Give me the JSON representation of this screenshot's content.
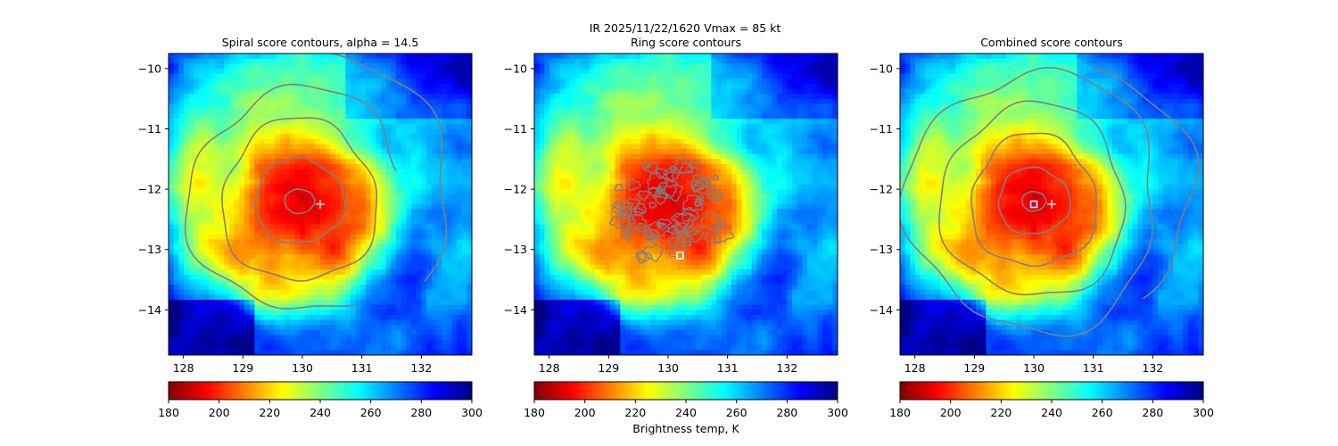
{
  "suptitle": "IR  2025/11/22/1620    Vmax = 85 kt",
  "colorbar": {
    "label": "Brightness temp, K",
    "ticks": [
      180,
      200,
      220,
      240,
      260,
      280,
      300
    ],
    "range": [
      180,
      300
    ],
    "colormap": "jet_r"
  },
  "chart_data": [
    {
      "type": "heatmap",
      "title": "Spiral score contours, alpha = 14.5",
      "xlim": [
        127.75,
        132.85
      ],
      "ylim": [
        -14.75,
        -9.75
      ],
      "xticks": [
        128,
        129,
        130,
        131,
        132
      ],
      "yticks": [
        -10,
        -11,
        -12,
        -13,
        -14
      ],
      "contour_color": "#808080",
      "center_marker": {
        "x": 130.3,
        "y": -12.25,
        "symbol": "+"
      },
      "eye_marker": null
    },
    {
      "type": "heatmap",
      "title": "Ring score contours",
      "xlim": [
        127.75,
        132.85
      ],
      "ylim": [
        -14.75,
        -9.75
      ],
      "xticks": [
        128,
        129,
        130,
        131,
        132
      ],
      "yticks": [
        -10,
        -11,
        -12,
        -13,
        -14
      ],
      "contour_color": "#808080",
      "center_marker": null,
      "eye_marker": {
        "x": 130.2,
        "y": -13.1,
        "symbol": "square"
      }
    },
    {
      "type": "heatmap",
      "title": "Combined score contours",
      "xlim": [
        127.75,
        132.85
      ],
      "ylim": [
        -14.75,
        -9.75
      ],
      "xticks": [
        128,
        129,
        130,
        131,
        132
      ],
      "yticks": [
        -10,
        -11,
        -12,
        -13,
        -14
      ],
      "contour_color": "#808080",
      "center_marker": {
        "x": 130.3,
        "y": -12.25,
        "symbol": "+"
      },
      "eye_marker": {
        "x": 130.0,
        "y": -12.25,
        "symbol": "square"
      }
    }
  ]
}
